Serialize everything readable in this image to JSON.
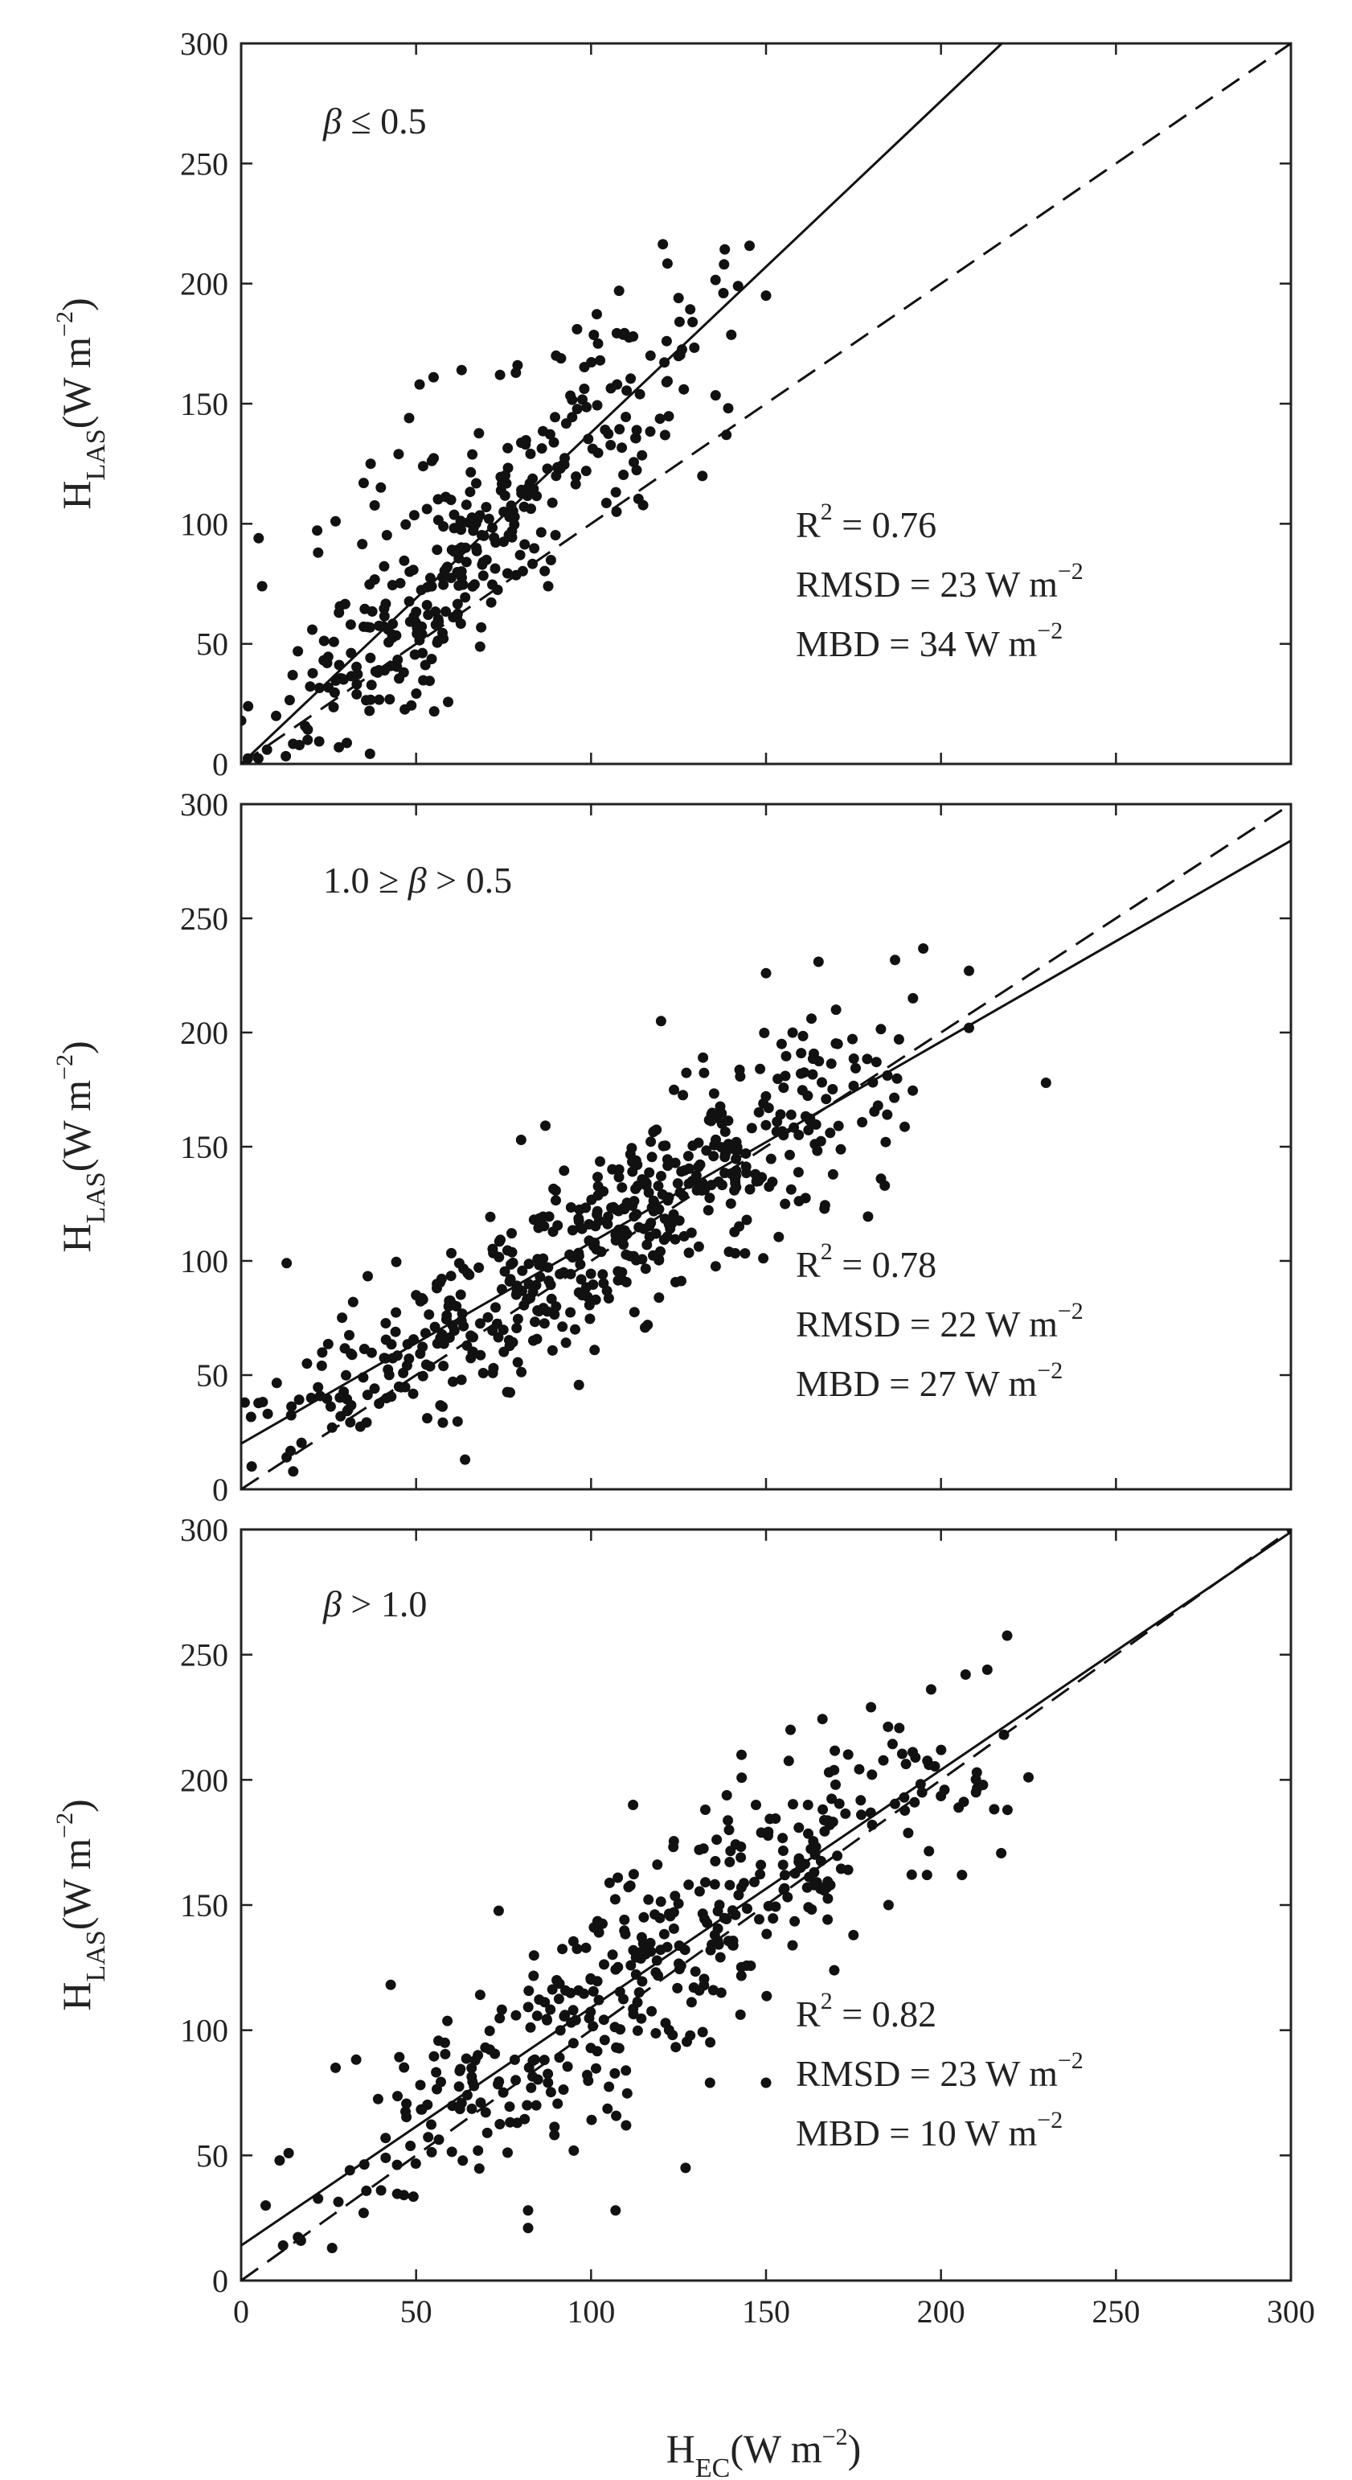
{
  "figure": {
    "x_axis_title": {
      "main": "H",
      "sub": "EC",
      "units": "(W m",
      "sup": "−2",
      "close": ")"
    },
    "y_axis_title": {
      "main": "H",
      "sub": "LAS",
      "units": "(W m",
      "sup": "−2",
      "close": ")"
    },
    "colors": {
      "points": "#111111",
      "fit_line": "#111111",
      "one_to_one": "#111111",
      "frame": "#222222",
      "background": "#ffffff"
    }
  },
  "chart_data": [
    {
      "type": "scatter",
      "panel_label": {
        "prefix": "",
        "symbol": "β",
        "suffix": " ≤ 0.5"
      },
      "xlim": [
        0,
        300
      ],
      "ylim": [
        0,
        300
      ],
      "x_ticks": [
        "0",
        "50",
        "100",
        "150",
        "200",
        "250",
        "300"
      ],
      "y_ticks": [
        "0",
        "50",
        "100",
        "150",
        "200",
        "250",
        "300"
      ],
      "show_x_tick_labels": false,
      "stats": [
        {
          "label": "R",
          "sup": "2",
          "value": " = 0.76"
        },
        {
          "label": "RMSD = 23 W m",
          "sup": "−2",
          "value": ""
        },
        {
          "label": "MBD = 34 W m",
          "sup": "−2",
          "value": ""
        }
      ],
      "fit_line": {
        "slope": 1.38,
        "intercept": 0
      },
      "one_to_one": true,
      "generator": {
        "n": 330,
        "xmin": 0,
        "xmax": 150,
        "xmode": 55,
        "sigma": 22,
        "seed": 11
      },
      "points": [
        [
          150,
          195
        ],
        [
          142,
          199
        ],
        [
          138,
          208
        ],
        [
          129,
          184
        ],
        [
          125,
          194
        ],
        [
          112,
          178
        ],
        [
          117,
          170
        ],
        [
          108,
          197
        ],
        [
          102,
          175
        ],
        [
          96,
          181
        ],
        [
          90,
          170
        ],
        [
          74,
          162
        ],
        [
          79,
          166
        ],
        [
          63,
          164
        ],
        [
          55,
          161
        ],
        [
          51,
          158
        ],
        [
          48,
          144
        ],
        [
          45,
          129
        ],
        [
          37,
          125
        ],
        [
          35,
          117
        ],
        [
          27,
          101
        ],
        [
          22,
          88
        ],
        [
          5,
          94
        ],
        [
          6,
          74
        ],
        [
          2,
          24
        ],
        [
          0,
          18
        ],
        [
          19,
          10
        ],
        [
          10,
          20
        ],
        [
          33,
          29
        ],
        [
          44,
          41
        ]
      ]
    },
    {
      "type": "scatter",
      "panel_label": {
        "prefix": "1.0 ≥ ",
        "symbol": "β",
        "suffix": " > 0.5"
      },
      "xlim": [
        0,
        300
      ],
      "ylim": [
        0,
        300
      ],
      "x_ticks": [
        "0",
        "50",
        "100",
        "150",
        "200",
        "250",
        "300"
      ],
      "y_ticks": [
        "0",
        "50",
        "100",
        "150",
        "200",
        "250",
        "300"
      ],
      "show_x_tick_labels": false,
      "stats": [
        {
          "label": "R",
          "sup": "2",
          "value": " = 0.78"
        },
        {
          "label": "RMSD = 22 W m",
          "sup": "−2",
          "value": ""
        },
        {
          "label": "MBD = 27 W m",
          "sup": "−2",
          "value": ""
        }
      ],
      "fit_line": {
        "slope": 0.88,
        "intercept": 20
      },
      "one_to_one": true,
      "generator": {
        "n": 520,
        "xmin": 0,
        "xmax": 200,
        "xmode": 115,
        "sigma": 20,
        "seed": 23
      },
      "points": [
        [
          230,
          178
        ],
        [
          208,
          227
        ],
        [
          208,
          202
        ],
        [
          192,
          215
        ],
        [
          188,
          197
        ],
        [
          182,
          168
        ],
        [
          165,
          231
        ],
        [
          150,
          226
        ],
        [
          13,
          99
        ],
        [
          1,
          38
        ],
        [
          3,
          10
        ],
        [
          13,
          14
        ],
        [
          20,
          40
        ],
        [
          26,
          27
        ],
        [
          32,
          82
        ],
        [
          64,
          13
        ],
        [
          101,
          61
        ],
        [
          90,
          80
        ],
        [
          108,
          140
        ],
        [
          80,
          153
        ],
        [
          50,
          85
        ],
        [
          120,
          205
        ],
        [
          132,
          189
        ],
        [
          160,
          182
        ],
        [
          170,
          210
        ]
      ]
    },
    {
      "type": "scatter",
      "panel_label": {
        "prefix": "",
        "symbol": "β",
        "suffix": " > 1.0"
      },
      "xlim": [
        0,
        300
      ],
      "ylim": [
        0,
        300
      ],
      "x_ticks": [
        "0",
        "50",
        "100",
        "150",
        "200",
        "250",
        "300"
      ],
      "y_ticks": [
        "0",
        "50",
        "100",
        "150",
        "200",
        "250",
        "300"
      ],
      "show_x_tick_labels": true,
      "stats": [
        {
          "label": "R",
          "sup": "2",
          "value": " = 0.82"
        },
        {
          "label": "RMSD = 23 W m",
          "sup": "−2",
          "value": ""
        },
        {
          "label": "MBD = 10 W m",
          "sup": "−2",
          "value": ""
        }
      ],
      "fit_line": {
        "slope": 0.95,
        "intercept": 14
      },
      "one_to_one": true,
      "generator": {
        "n": 400,
        "xmin": 5,
        "xmax": 225,
        "xmode": 120,
        "sigma": 21,
        "seed": 37
      },
      "points": [
        [
          180,
          229
        ],
        [
          157,
          220
        ],
        [
          143,
          210
        ],
        [
          225,
          201
        ],
        [
          218,
          218
        ],
        [
          219,
          188
        ],
        [
          210,
          195
        ],
        [
          212,
          198
        ],
        [
          201,
          196
        ],
        [
          206,
          162
        ],
        [
          196,
          162
        ],
        [
          185,
          150
        ],
        [
          175,
          138
        ],
        [
          112,
          190
        ],
        [
          127,
          45
        ],
        [
          107,
          28
        ],
        [
          82,
          28
        ],
        [
          82,
          21
        ],
        [
          27,
          85
        ],
        [
          7,
          30
        ],
        [
          11,
          48
        ],
        [
          12,
          14
        ],
        [
          17,
          16
        ],
        [
          26,
          13
        ],
        [
          35,
          27
        ],
        [
          40,
          36
        ],
        [
          150,
          79
        ],
        [
          134,
          79
        ],
        [
          110,
          62
        ],
        [
          162,
          190
        ],
        [
          168,
          203
        ]
      ]
    }
  ]
}
